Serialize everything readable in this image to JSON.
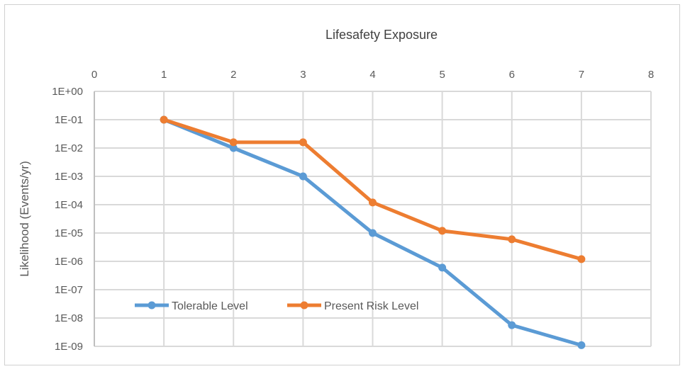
{
  "chart_data": {
    "type": "line",
    "title": "Lifesafety Exposure",
    "xlabel": "",
    "ylabel": "Likelihood (Events/yr)",
    "x_axis_position": "top",
    "xlim": [
      0,
      8
    ],
    "x_ticks": [
      "0",
      "1",
      "2",
      "3",
      "4",
      "5",
      "6",
      "7",
      "8"
    ],
    "y_scale": "log",
    "ylim": [
      1e-09,
      1
    ],
    "y_ticks": [
      "1E+00",
      "1E-01",
      "1E-02",
      "1E-03",
      "1E-04",
      "1E-05",
      "1E-06",
      "1E-07",
      "1E-08",
      "1E-09"
    ],
    "grid": true,
    "legend_position": "bottom-left",
    "x": [
      1,
      2,
      3,
      4,
      5,
      6,
      7
    ],
    "series": [
      {
        "name": "Tolerable Level",
        "color": "#5B9BD5",
        "values": [
          0.1,
          0.01,
          0.001,
          1e-05,
          6e-07,
          5.6e-09,
          1.1e-09
        ]
      },
      {
        "name": "Present Risk Level",
        "color": "#ED7D31",
        "values": [
          0.1,
          0.016,
          0.016,
          0.00012,
          1.2e-05,
          6e-06,
          1.2e-06
        ]
      }
    ]
  }
}
